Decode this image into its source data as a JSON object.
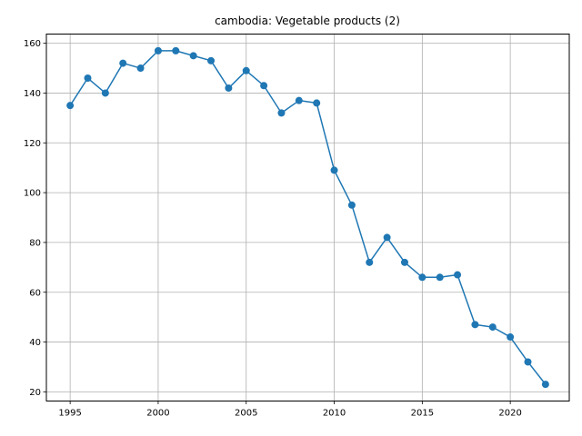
{
  "chart_data": {
    "type": "line",
    "title": "cambodia: Vegetable products (2)",
    "xlabel": "",
    "ylabel": "",
    "x": [
      1995,
      1996,
      1997,
      1998,
      1999,
      2000,
      2001,
      2002,
      2003,
      2004,
      2005,
      2006,
      2007,
      2008,
      2009,
      2010,
      2011,
      2012,
      2013,
      2014,
      2015,
      2016,
      2017,
      2018,
      2019,
      2020,
      2021,
      2022
    ],
    "series": [
      {
        "values": [
          135,
          146,
          140,
          152,
          150,
          157,
          157,
          155,
          153,
          142,
          149,
          143,
          132,
          137,
          136,
          109,
          95,
          72,
          82,
          72,
          66,
          66,
          67,
          47,
          46,
          42,
          32,
          23
        ],
        "color": "#1f77b4",
        "marker": "circle"
      }
    ],
    "xlim": [
      1993.65,
      2023.35
    ],
    "ylim": [
      16.3,
      163.7
    ],
    "xticks": [
      "1995",
      "2000",
      "2005",
      "2010",
      "2015",
      "2020"
    ],
    "yticks": [
      "20",
      "40",
      "60",
      "80",
      "100",
      "120",
      "140",
      "160"
    ],
    "grid": true,
    "legend": "none"
  }
}
